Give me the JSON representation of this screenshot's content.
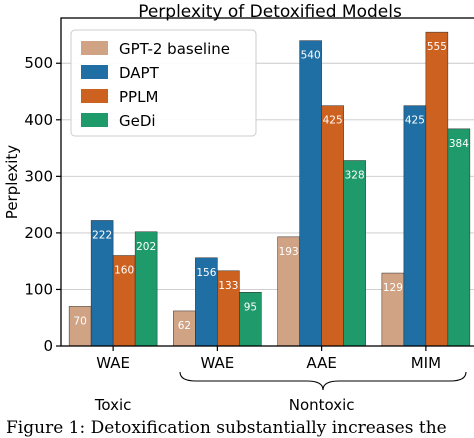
{
  "chart_data": {
    "type": "bar",
    "title": "Perplexity of Detoxified Models",
    "xlabel": "",
    "ylabel": "Perplexity",
    "ylim": [
      0,
      580
    ],
    "yticks": [
      0,
      100,
      200,
      300,
      400,
      500
    ],
    "grid": true,
    "legend_position": "top-left",
    "categories": [
      "WAE",
      "WAE",
      "AAE",
      "MIM"
    ],
    "groups": [
      {
        "label": "Toxic",
        "categories": [
          "WAE"
        ]
      },
      {
        "label": "Nontoxic",
        "categories": [
          "WAE",
          "AAE",
          "MIM"
        ]
      }
    ],
    "series": [
      {
        "name": "GPT-2 baseline",
        "color": "#d1a385",
        "values": [
          70,
          62,
          193,
          129
        ],
        "labels": [
          "70",
          "62",
          "193",
          "129"
        ]
      },
      {
        "name": "DAPT",
        "color": "#1f6fa5",
        "values": [
          222,
          156,
          540,
          425
        ],
        "labels": [
          "222",
          "156",
          "540",
          "425"
        ]
      },
      {
        "name": "PPLM",
        "color": "#cd6120",
        "values": [
          160,
          133,
          425,
          555
        ],
        "labels": [
          "160",
          "133",
          "425",
          "555"
        ]
      },
      {
        "name": "GeDi",
        "color": "#1f9a6b",
        "values": [
          202,
          95,
          328,
          384
        ],
        "labels": [
          "202",
          "95",
          "328",
          "384"
        ]
      }
    ]
  },
  "caption": "Figure 1:  Detoxification substantially increases the"
}
